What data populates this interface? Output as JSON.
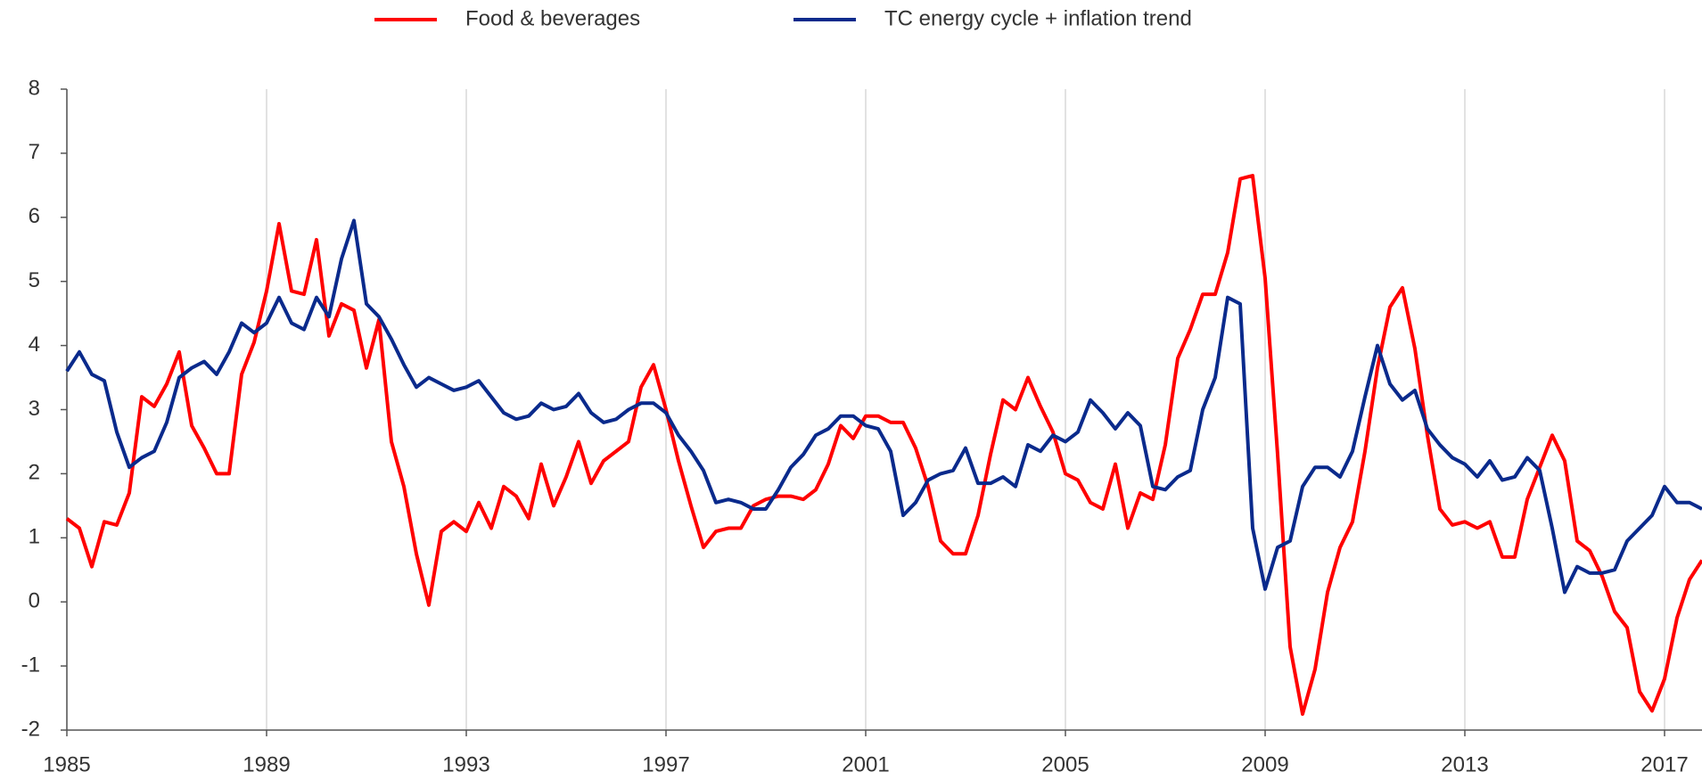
{
  "chart_data": {
    "type": "line",
    "x": [
      1985,
      1985.25,
      1985.5,
      1985.75,
      1986,
      1986.25,
      1986.5,
      1986.75,
      1987,
      1987.25,
      1987.5,
      1987.75,
      1988,
      1988.25,
      1988.5,
      1988.75,
      1989,
      1989.25,
      1989.5,
      1989.75,
      1990,
      1990.25,
      1990.5,
      1990.75,
      1991,
      1991.25,
      1991.5,
      1991.75,
      1992,
      1992.25,
      1992.5,
      1992.75,
      1993,
      1993.25,
      1993.5,
      1993.75,
      1994,
      1994.25,
      1994.5,
      1994.75,
      1995,
      1995.25,
      1995.5,
      1995.75,
      1996,
      1996.25,
      1996.5,
      1996.75,
      1997,
      1997.25,
      1997.5,
      1997.75,
      1998,
      1998.25,
      1998.5,
      1998.75,
      1999,
      1999.25,
      1999.5,
      1999.75,
      2000,
      2000.25,
      2000.5,
      2000.75,
      2001,
      2001.25,
      2001.5,
      2001.75,
      2002,
      2002.25,
      2002.5,
      2002.75,
      2003,
      2003.25,
      2003.5,
      2003.75,
      2004,
      2004.25,
      2004.5,
      2004.75,
      2005,
      2005.25,
      2005.5,
      2005.75,
      2006,
      2006.25,
      2006.5,
      2006.75,
      2007,
      2007.25,
      2007.5,
      2007.75,
      2008,
      2008.25,
      2008.5,
      2008.75,
      2009,
      2009.25,
      2009.5,
      2009.75,
      2010,
      2010.25,
      2010.5,
      2010.75,
      2011,
      2011.25,
      2011.5,
      2011.75,
      2012,
      2012.25,
      2012.5,
      2012.75,
      2013,
      2013.25,
      2013.5,
      2013.75,
      2014,
      2014.25,
      2014.5,
      2014.75,
      2015,
      2015.25,
      2015.5,
      2015.75,
      2016,
      2016.25,
      2016.5,
      2016.75,
      2017,
      2017.25,
      2017.5,
      2017.75
    ],
    "series": [
      {
        "name": "Food & beverages",
        "color": "#ff0000",
        "values": [
          1.3,
          1.15,
          0.55,
          1.25,
          1.2,
          1.7,
          3.2,
          3.05,
          3.4,
          3.9,
          2.75,
          2.4,
          2.0,
          2.0,
          3.55,
          4.05,
          4.85,
          5.9,
          4.85,
          4.8,
          5.65,
          4.15,
          4.65,
          4.55,
          3.65,
          4.4,
          2.5,
          1.8,
          0.75,
          -0.05,
          1.1,
          1.25,
          1.1,
          1.55,
          1.15,
          1.8,
          1.65,
          1.3,
          2.15,
          1.5,
          1.95,
          2.5,
          1.85,
          2.2,
          2.35,
          2.5,
          3.35,
          3.7,
          3.0,
          2.2,
          1.5,
          0.85,
          1.1,
          1.15,
          1.15,
          1.5,
          1.6,
          1.65,
          1.65,
          1.6,
          1.75,
          2.15,
          2.75,
          2.55,
          2.9,
          2.9,
          2.8,
          2.8,
          2.4,
          1.8,
          0.95,
          0.75,
          0.75,
          1.35,
          2.3,
          3.15,
          3.0,
          3.5,
          3.05,
          2.65,
          2.0,
          1.9,
          1.55,
          1.45,
          2.15,
          1.15,
          1.7,
          1.6,
          2.45,
          3.8,
          4.25,
          4.8,
          4.8,
          5.45,
          6.6,
          6.65,
          5.05,
          2.3,
          -0.7,
          -1.75,
          -1.05,
          0.15,
          0.85,
          1.25,
          2.35,
          3.65,
          4.6,
          4.9,
          3.95,
          2.6,
          1.45,
          1.2,
          1.25,
          1.15,
          1.25,
          0.7,
          0.7,
          1.6,
          2.1,
          2.6,
          2.2,
          0.95,
          0.8,
          0.4,
          -0.15,
          -0.4,
          -1.4,
          -1.7,
          -1.2,
          -0.25,
          0.35,
          0.65
        ]
      },
      {
        "name": "TC energy cycle + inflation trend",
        "color": "#0a2a8c",
        "values": [
          3.6,
          3.9,
          3.55,
          3.45,
          2.65,
          2.1,
          2.25,
          2.35,
          2.8,
          3.5,
          3.65,
          3.75,
          3.55,
          3.9,
          4.35,
          4.2,
          4.35,
          4.75,
          4.35,
          4.25,
          4.75,
          4.45,
          5.35,
          5.95,
          4.65,
          4.45,
          4.1,
          3.7,
          3.35,
          3.5,
          3.4,
          3.3,
          3.35,
          3.45,
          3.2,
          2.95,
          2.85,
          2.9,
          3.1,
          3.0,
          3.05,
          3.25,
          2.95,
          2.8,
          2.85,
          3.0,
          3.1,
          3.1,
          2.95,
          2.6,
          2.35,
          2.05,
          1.55,
          1.6,
          1.55,
          1.45,
          1.45,
          1.75,
          2.1,
          2.3,
          2.6,
          2.7,
          2.9,
          2.9,
          2.75,
          2.7,
          2.35,
          1.35,
          1.55,
          1.9,
          2.0,
          2.05,
          2.4,
          1.85,
          1.85,
          1.95,
          1.8,
          2.45,
          2.35,
          2.6,
          2.5,
          2.65,
          3.15,
          2.95,
          2.7,
          2.95,
          2.75,
          1.8,
          1.75,
          1.95,
          2.05,
          3.0,
          3.5,
          4.75,
          4.65,
          1.15,
          0.2,
          0.85,
          0.95,
          1.8,
          2.1,
          2.1,
          1.95,
          2.35,
          3.2,
          4.0,
          3.4,
          3.15,
          3.3,
          2.7,
          2.45,
          2.25,
          2.15,
          1.95,
          2.2,
          1.9,
          1.95,
          2.25,
          2.05,
          1.15,
          0.15,
          0.55,
          0.45,
          0.45,
          0.5,
          0.95,
          1.15,
          1.35,
          1.8,
          1.55,
          1.55,
          1.45
        ]
      }
    ],
    "xlim": [
      1985,
      2017.75
    ],
    "xticks": [
      1985,
      1989,
      1993,
      1997,
      2001,
      2005,
      2009,
      2013,
      2017
    ],
    "ylim": [
      -2,
      8
    ],
    "yticks": [
      -2,
      -1,
      0,
      1,
      2,
      3,
      4,
      5,
      6,
      7,
      8
    ],
    "grid": "x",
    "legend": "top"
  }
}
